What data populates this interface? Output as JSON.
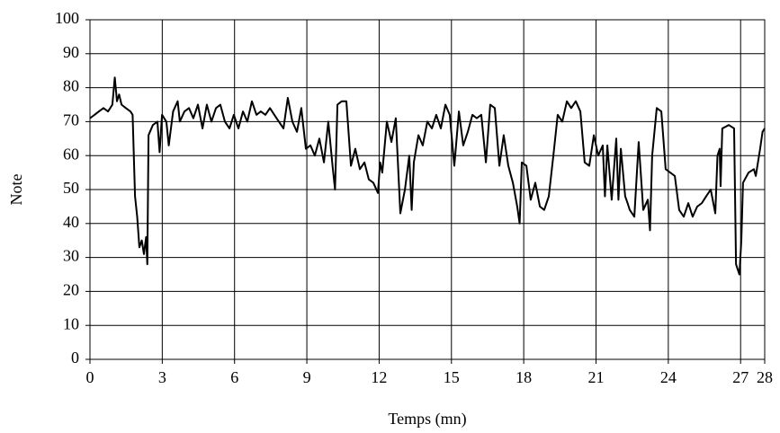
{
  "chart_data": {
    "type": "line",
    "x_label": "Temps (mn)",
    "y_label": "Note",
    "xlim": [
      0,
      28
    ],
    "xticks": [
      0,
      3,
      6,
      9,
      12,
      15,
      18,
      21,
      24,
      27,
      28
    ],
    "ylim": [
      0,
      100
    ],
    "yticks": [
      0,
      10,
      20,
      30,
      40,
      50,
      60,
      70,
      80,
      90,
      100
    ],
    "grid": true,
    "series": [
      {
        "color": "#000000",
        "x": [
          0,
          0.19,
          0.37,
          0.56,
          0.75,
          0.93,
          1.03,
          1.12,
          1.21,
          1.31,
          1.49,
          1.68,
          1.77,
          1.87,
          1.96,
          2.05,
          2.15,
          2.24,
          2.33,
          2.38,
          2.43,
          2.61,
          2.8,
          2.89,
          2.99,
          3.17,
          3.27,
          3.45,
          3.64,
          3.73,
          3.92,
          4.11,
          4.29,
          4.48,
          4.67,
          4.85,
          5.04,
          5.23,
          5.41,
          5.6,
          5.79,
          5.97,
          6.16,
          6.35,
          6.53,
          6.72,
          6.91,
          7.09,
          7.28,
          7.47,
          7.65,
          7.84,
          8.03,
          8.21,
          8.4,
          8.59,
          8.77,
          8.96,
          9.15,
          9.33,
          9.52,
          9.71,
          9.89,
          10.08,
          10.17,
          10.27,
          10.45,
          10.64,
          10.83,
          11.01,
          11.2,
          11.39,
          11.57,
          11.76,
          11.95,
          12.04,
          12.13,
          12.32,
          12.51,
          12.69,
          12.88,
          13.07,
          13.25,
          13.35,
          13.44,
          13.63,
          13.81,
          14.0,
          14.19,
          14.37,
          14.56,
          14.75,
          14.93,
          15.12,
          15.31,
          15.49,
          15.68,
          15.87,
          16.05,
          16.24,
          16.43,
          16.61,
          16.8,
          16.99,
          17.17,
          17.36,
          17.55,
          17.73,
          17.83,
          17.92,
          18.11,
          18.29,
          18.48,
          18.67,
          18.85,
          19.04,
          19.23,
          19.41,
          19.6,
          19.79,
          19.97,
          20.16,
          20.35,
          20.53,
          20.72,
          20.91,
          21.09,
          21.28,
          21.37,
          21.47,
          21.65,
          21.84,
          21.93,
          22.03,
          22.21,
          22.31,
          22.4,
          22.59,
          22.77,
          22.96,
          23.15,
          23.24,
          23.33,
          23.52,
          23.71,
          23.89,
          24.27,
          24.45,
          24.64,
          24.83,
          25.01,
          25.2,
          25.39,
          25.57,
          25.76,
          25.95,
          26.04,
          26.13,
          26.17,
          26.24,
          26.51,
          26.73,
          26.81,
          26.95,
          27.03,
          27.1,
          27.33,
          27.55,
          27.63,
          27.81,
          27.91,
          28
        ],
        "values": [
          71,
          72,
          73,
          74,
          73,
          75,
          83,
          76,
          78,
          75,
          74,
          73,
          72,
          48,
          42,
          33,
          35,
          31,
          36,
          28,
          66,
          69,
          70,
          61,
          72,
          70,
          63,
          73,
          76,
          70,
          73,
          74,
          71,
          75,
          68,
          75,
          70,
          74,
          75,
          70,
          68,
          72,
          68,
          73,
          70,
          76,
          72,
          73,
          72,
          74,
          72,
          70,
          68,
          77,
          70,
          67,
          74,
          62,
          63,
          60,
          65,
          58,
          70,
          56,
          50,
          75,
          76,
          76,
          57,
          62,
          56,
          58,
          53,
          52,
          49,
          58,
          55,
          70,
          64,
          71,
          43,
          50,
          60,
          44,
          58,
          66,
          63,
          70,
          68,
          72,
          68,
          75,
          72,
          57,
          73,
          63,
          67,
          72,
          71,
          72,
          58,
          75,
          74,
          57,
          66,
          57,
          52,
          45,
          40,
          58,
          57,
          47,
          52,
          45,
          44,
          48,
          60,
          72,
          70,
          76,
          74,
          76,
          73,
          58,
          57,
          66,
          60,
          63,
          48,
          63,
          47,
          65,
          47,
          62,
          48,
          46,
          44,
          42,
          64,
          44,
          47,
          38,
          60,
          74,
          73,
          56,
          54,
          44,
          42,
          46,
          42,
          45,
          46,
          48,
          50,
          43,
          60,
          62,
          51,
          68,
          69,
          68,
          28,
          25,
          35,
          52,
          55,
          56,
          54,
          62,
          67,
          68
        ]
      }
    ]
  }
}
